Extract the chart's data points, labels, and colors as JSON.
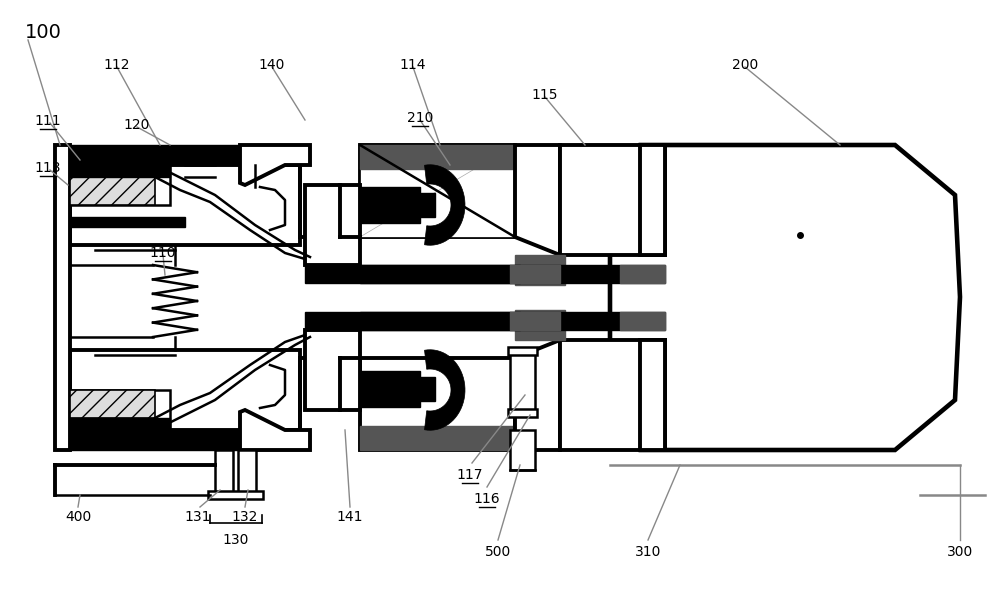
{
  "bg_color": "#ffffff",
  "lc": "#000000",
  "dg": "#555555",
  "ann_color": "#888888",
  "figsize": [
    10.0,
    5.95
  ],
  "dpi": 100,
  "lw_thick": 2.8,
  "lw_med": 1.8,
  "lw_thin": 1.2
}
